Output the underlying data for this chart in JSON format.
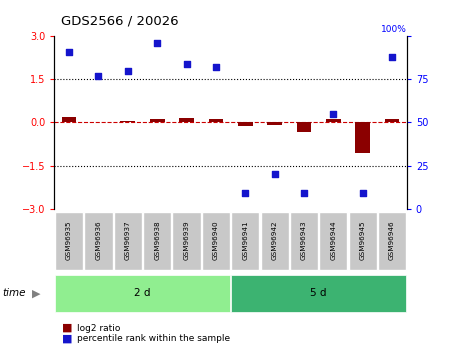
{
  "title": "GDS2566 / 20026",
  "samples": [
    "GSM96935",
    "GSM96936",
    "GSM96937",
    "GSM96938",
    "GSM96939",
    "GSM96940",
    "GSM96941",
    "GSM96942",
    "GSM96943",
    "GSM96944",
    "GSM96945",
    "GSM96946"
  ],
  "groups": [
    {
      "label": "2 d",
      "n": 6,
      "color": "#90EE90"
    },
    {
      "label": "5 d",
      "n": 6,
      "color": "#3CB371"
    }
  ],
  "log2_ratio": [
    0.18,
    0.03,
    0.05,
    0.12,
    0.14,
    0.13,
    -0.12,
    -0.08,
    -0.33,
    0.12,
    -1.05,
    0.12
  ],
  "percentile_rank": [
    91,
    77,
    80,
    96,
    84,
    82,
    9,
    20,
    9,
    55,
    9,
    88
  ],
  "ylim": [
    -3,
    3
  ],
  "y2lim": [
    0,
    100
  ],
  "yticks": [
    -3,
    -1.5,
    0,
    1.5,
    3
  ],
  "y2ticks": [
    0,
    25,
    50,
    75,
    100
  ],
  "hlines": [
    1.5,
    -1.5
  ],
  "bar_color": "#8B0000",
  "scatter_color": "#1414CC",
  "dashed_line_color": "#CC0000",
  "legend_items": [
    {
      "color": "#8B0000",
      "label": "log2 ratio"
    },
    {
      "color": "#1414CC",
      "label": "percentile rank within the sample"
    }
  ],
  "sample_box_color": "#C8C8C8",
  "time_label": "time"
}
